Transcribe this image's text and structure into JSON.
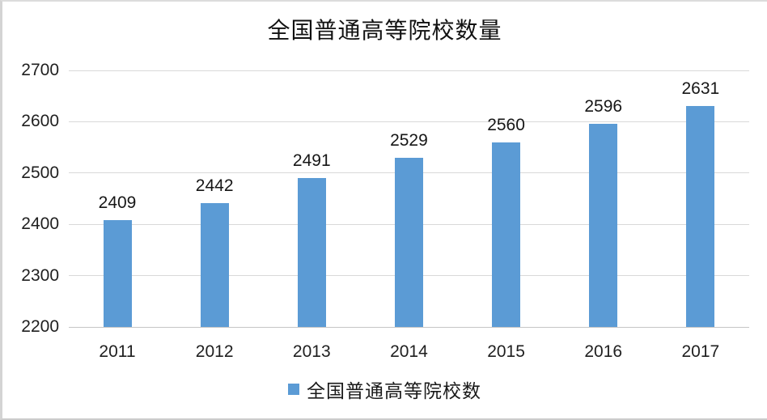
{
  "chart_data": {
    "type": "bar",
    "title": "全国普通高等院校数量",
    "categories": [
      "2011",
      "2012",
      "2013",
      "2014",
      "2015",
      "2016",
      "2017"
    ],
    "values": [
      2409,
      2442,
      2491,
      2529,
      2560,
      2596,
      2631
    ],
    "series_name": "全国普通高等院校数",
    "legend": {
      "label": "全国普通高等院校数",
      "position": "bottom"
    },
    "xlabel": "",
    "ylabel": "",
    "ylim": [
      2200,
      2700
    ],
    "yticks": [
      2200,
      2300,
      2400,
      2500,
      2600,
      2700
    ],
    "grid": true,
    "data_labels_shown": true,
    "colors": {
      "bar": "#5b9bd5",
      "gridline": "#d9d9d9",
      "text": "#1f1f1f"
    }
  }
}
